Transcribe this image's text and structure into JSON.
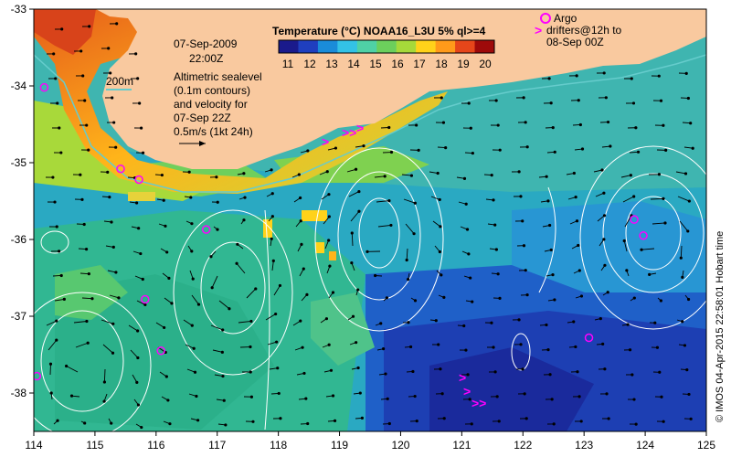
{
  "map": {
    "title": "Temperature (°C) NOAA16_L3U 5% ql>=4",
    "date": "07-Sep-2009",
    "time": "22:00Z",
    "contour_label": "200m",
    "notes": [
      "Altimetric sealevel",
      "(0.1m contours)",
      "and velocity for",
      "07-Sep 22Z",
      "0.5m/s (1kt 24h)"
    ],
    "argo_label": "Argo",
    "drifters_label": "drifters@12h to",
    "drifters_until": "08-Sep 00Z",
    "credit": "© IMOS 04-Apr-2015 22:58:01 Hobart time",
    "colors": {
      "land": "#f9c99f",
      "argo": "#ff00ff",
      "drifter": "#ff00ff",
      "contour": "#ffffff",
      "isobath": "#66cccc"
    }
  },
  "colorbar": {
    "ticks": [
      "11",
      "12",
      "13",
      "14",
      "15",
      "16",
      "17",
      "18",
      "19",
      "20"
    ],
    "colors": [
      "#1a1a8c",
      "#1f3fbf",
      "#1a8cd9",
      "#33c2e6",
      "#4fd1a6",
      "#6ccf5c",
      "#a6d93a",
      "#ffd21a",
      "#ff9a1a",
      "#e6461a",
      "#9e0a0a"
    ]
  },
  "axes": {
    "x_ticks": [
      "114",
      "115",
      "116",
      "117",
      "118",
      "119",
      "120",
      "121",
      "122",
      "123",
      "124",
      "125"
    ],
    "y_ticks": [
      "-33",
      "-34",
      "-35",
      "-36",
      "-37",
      "-38"
    ]
  },
  "argo_floats": [
    {
      "lon": 114.17,
      "lat": -34.02
    },
    {
      "lon": 115.42,
      "lat": -35.08
    },
    {
      "lon": 115.72,
      "lat": -35.22
    },
    {
      "lon": 116.82,
      "lat": -35.87
    },
    {
      "lon": 115.82,
      "lat": -36.78
    },
    {
      "lon": 116.08,
      "lat": -37.45
    },
    {
      "lon": 114.05,
      "lat": -37.78
    },
    {
      "lon": 123.82,
      "lat": -35.74
    },
    {
      "lon": 123.97,
      "lat": -35.95
    },
    {
      "lon": 123.08,
      "lat": -37.28
    }
  ]
}
